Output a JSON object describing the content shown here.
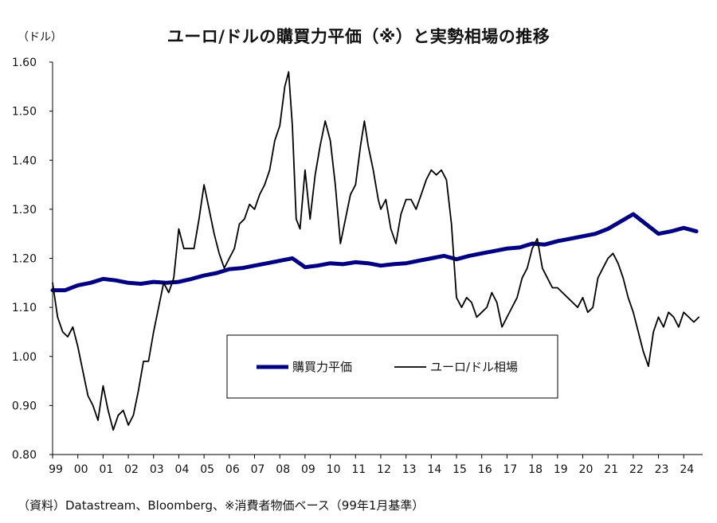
{
  "chart_data": {
    "type": "line",
    "title": "ユーロ/ドルの購買力平価（※）と実勢相場の推移",
    "ylabel": "（ドル）",
    "xlabel": "",
    "ylim": [
      0.8,
      1.6
    ],
    "yticks": [
      "0.80",
      "0.90",
      "1.00",
      "1.10",
      "1.20",
      "1.30",
      "1.40",
      "1.50",
      "1.60"
    ],
    "xticks": [
      "99",
      "00",
      "01",
      "02",
      "03",
      "04",
      "05",
      "06",
      "07",
      "08",
      "09",
      "10",
      "11",
      "12",
      "13",
      "14",
      "15",
      "16",
      "17",
      "18",
      "19",
      "20",
      "21",
      "22",
      "23",
      "24"
    ],
    "xlim": [
      1999.0,
      2024.75
    ],
    "grid": false,
    "legend_position": "center-right",
    "source": "（資料）Datastream、Bloomberg、※消費者物価ベース（99年1月基準）",
    "series": [
      {
        "name": "購買力平価",
        "color": "#000080",
        "x": [
          1999.0,
          1999.5,
          2000.0,
          2000.5,
          2001.0,
          2001.5,
          2002.0,
          2002.5,
          2003.0,
          2003.5,
          2004.0,
          2004.5,
          2005.0,
          2005.5,
          2006.0,
          2006.5,
          2007.0,
          2007.5,
          2008.0,
          2008.5,
          2009.0,
          2009.5,
          2010.0,
          2010.5,
          2011.0,
          2011.5,
          2012.0,
          2012.5,
          2013.0,
          2013.5,
          2014.0,
          2014.5,
          2015.0,
          2015.5,
          2016.0,
          2016.5,
          2017.0,
          2017.5,
          2018.0,
          2018.5,
          2019.0,
          2019.5,
          2020.0,
          2020.5,
          2021.0,
          2021.5,
          2022.0,
          2022.5,
          2023.0,
          2023.5,
          2024.0,
          2024.5
        ],
        "values": [
          1.135,
          1.135,
          1.145,
          1.15,
          1.158,
          1.155,
          1.15,
          1.148,
          1.152,
          1.15,
          1.152,
          1.158,
          1.165,
          1.17,
          1.178,
          1.18,
          1.185,
          1.19,
          1.195,
          1.2,
          1.182,
          1.185,
          1.19,
          1.188,
          1.192,
          1.19,
          1.185,
          1.188,
          1.19,
          1.195,
          1.2,
          1.205,
          1.198,
          1.205,
          1.21,
          1.215,
          1.22,
          1.222,
          1.23,
          1.228,
          1.235,
          1.24,
          1.245,
          1.25,
          1.26,
          1.275,
          1.29,
          1.27,
          1.25,
          1.255,
          1.262,
          1.255
        ]
      },
      {
        "name": "ユーロ/ドル相場",
        "color": "#000000",
        "x": [
          1999.0,
          1999.2,
          1999.4,
          1999.6,
          1999.8,
          2000.0,
          2000.2,
          2000.4,
          2000.6,
          2000.8,
          2001.0,
          2001.2,
          2001.4,
          2001.6,
          2001.8,
          2002.0,
          2002.2,
          2002.4,
          2002.6,
          2002.8,
          2003.0,
          2003.2,
          2003.4,
          2003.6,
          2003.8,
          2004.0,
          2004.2,
          2004.4,
          2004.6,
          2004.8,
          2005.0,
          2005.2,
          2005.4,
          2005.6,
          2005.8,
          2006.0,
          2006.2,
          2006.4,
          2006.6,
          2006.8,
          2007.0,
          2007.2,
          2007.4,
          2007.6,
          2007.8,
          2008.0,
          2008.2,
          2008.35,
          2008.5,
          2008.65,
          2008.8,
          2009.0,
          2009.2,
          2009.4,
          2009.6,
          2009.8,
          2010.0,
          2010.2,
          2010.4,
          2010.6,
          2010.8,
          2011.0,
          2011.2,
          2011.35,
          2011.5,
          2011.7,
          2011.9,
          2012.0,
          2012.2,
          2012.4,
          2012.6,
          2012.8,
          2013.0,
          2013.2,
          2013.4,
          2013.6,
          2013.8,
          2014.0,
          2014.2,
          2014.4,
          2014.6,
          2014.8,
          2015.0,
          2015.2,
          2015.4,
          2015.6,
          2015.8,
          2016.0,
          2016.2,
          2016.4,
          2016.6,
          2016.8,
          2017.0,
          2017.2,
          2017.4,
          2017.6,
          2017.8,
          2018.0,
          2018.2,
          2018.4,
          2018.6,
          2018.8,
          2019.0,
          2019.2,
          2019.4,
          2019.6,
          2019.8,
          2020.0,
          2020.2,
          2020.4,
          2020.6,
          2020.8,
          2021.0,
          2021.2,
          2021.4,
          2021.6,
          2021.8,
          2022.0,
          2022.2,
          2022.4,
          2022.6,
          2022.8,
          2023.0,
          2023.2,
          2023.4,
          2023.6,
          2023.8,
          2024.0,
          2024.2,
          2024.4,
          2024.6
        ],
        "values": [
          1.15,
          1.08,
          1.05,
          1.04,
          1.06,
          1.02,
          0.97,
          0.92,
          0.9,
          0.87,
          0.94,
          0.89,
          0.85,
          0.88,
          0.89,
          0.86,
          0.88,
          0.93,
          0.99,
          0.99,
          1.05,
          1.1,
          1.15,
          1.13,
          1.16,
          1.26,
          1.22,
          1.22,
          1.22,
          1.28,
          1.35,
          1.3,
          1.25,
          1.21,
          1.18,
          1.2,
          1.22,
          1.27,
          1.28,
          1.31,
          1.3,
          1.33,
          1.35,
          1.38,
          1.44,
          1.47,
          1.55,
          1.58,
          1.47,
          1.28,
          1.26,
          1.38,
          1.28,
          1.37,
          1.43,
          1.48,
          1.44,
          1.35,
          1.23,
          1.28,
          1.33,
          1.35,
          1.43,
          1.48,
          1.43,
          1.38,
          1.32,
          1.3,
          1.32,
          1.26,
          1.23,
          1.29,
          1.32,
          1.32,
          1.3,
          1.33,
          1.36,
          1.38,
          1.37,
          1.38,
          1.36,
          1.27,
          1.12,
          1.1,
          1.12,
          1.11,
          1.08,
          1.09,
          1.1,
          1.13,
          1.11,
          1.06,
          1.08,
          1.1,
          1.12,
          1.16,
          1.18,
          1.22,
          1.24,
          1.18,
          1.16,
          1.14,
          1.14,
          1.13,
          1.12,
          1.11,
          1.1,
          1.12,
          1.09,
          1.1,
          1.16,
          1.18,
          1.2,
          1.21,
          1.19,
          1.16,
          1.12,
          1.09,
          1.05,
          1.01,
          0.98,
          1.05,
          1.08,
          1.06,
          1.09,
          1.08,
          1.06,
          1.09,
          1.08,
          1.07,
          1.08
        ]
      }
    ]
  }
}
